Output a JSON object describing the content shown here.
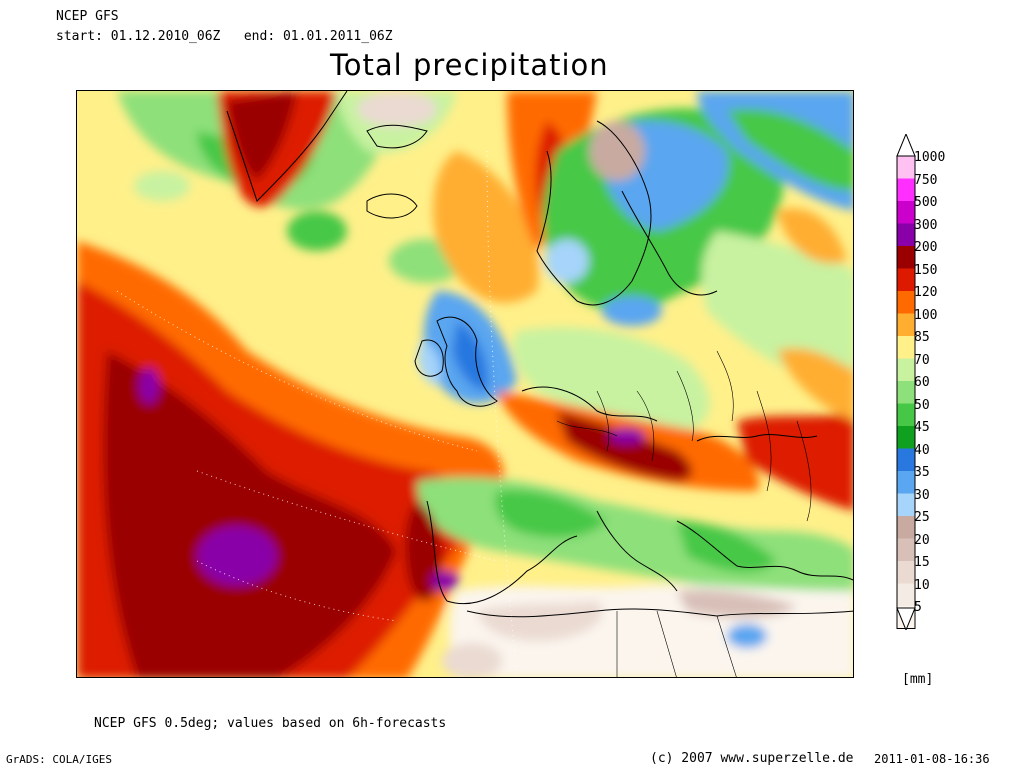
{
  "header": {
    "model": "NCEP GFS",
    "period": "start: 01.12.2010_06Z   end: 01.01.2011_06Z",
    "title": "Total precipitation"
  },
  "legend": {
    "unit": "[mm]",
    "levels": [
      {
        "label": "1000",
        "color": "#ffc0f2"
      },
      {
        "label": "750",
        "color": "#ff30ff"
      },
      {
        "label": "500",
        "color": "#cc00cc"
      },
      {
        "label": "300",
        "color": "#8a00a8"
      },
      {
        "label": "200",
        "color": "#9a0000"
      },
      {
        "label": "150",
        "color": "#dd1a00"
      },
      {
        "label": "120",
        "color": "#ff6a00"
      },
      {
        "label": "100",
        "color": "#ffae30"
      },
      {
        "label": "85",
        "color": "#fff08a"
      },
      {
        "label": "70",
        "color": "#c8f2a0"
      },
      {
        "label": "60",
        "color": "#8ee07a"
      },
      {
        "label": "50",
        "color": "#46c846"
      },
      {
        "label": "45",
        "color": "#10a020"
      },
      {
        "label": "40",
        "color": "#2878e0"
      },
      {
        "label": "35",
        "color": "#5aa6f0"
      },
      {
        "label": "30",
        "color": "#a6d4fa"
      },
      {
        "label": "25",
        "color": "#c8aaa0"
      },
      {
        "label": "20",
        "color": "#d8c0b8"
      },
      {
        "label": "15",
        "color": "#eadad2"
      },
      {
        "label": "10",
        "color": "#f4ebe4"
      },
      {
        "label": "5",
        "color": "#fbf5ee"
      }
    ]
  },
  "footer": {
    "note": "NCEP GFS 0.5deg; values based on 6h-forecasts",
    "grads": "GrADS: COLA/IGES",
    "copyright": "(c) 2007 www.superzelle.de",
    "timestamp": "2011-01-08-16:36"
  }
}
